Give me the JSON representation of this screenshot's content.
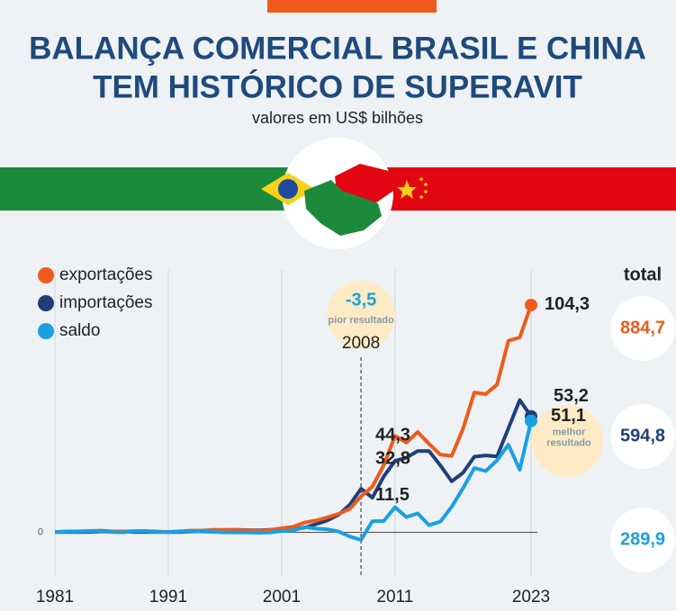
{
  "header": {
    "title": [
      "BALANÇA COMERCIAL BRASIL E CHINA",
      "TEM HISTÓRICO DE SUPERAVIT"
    ],
    "subtitle": "valores em US$ bilhões"
  },
  "chart_data": {
    "type": "line",
    "x": [
      1981,
      1982,
      1983,
      1984,
      1985,
      1986,
      1987,
      1988,
      1989,
      1990,
      1991,
      1992,
      1993,
      1994,
      1995,
      1996,
      1997,
      1998,
      1999,
      2000,
      2001,
      2002,
      2003,
      2004,
      2005,
      2006,
      2007,
      2008,
      2009,
      2010,
      2011,
      2012,
      2013,
      2014,
      2015,
      2016,
      2017,
      2018,
      2019,
      2020,
      2021,
      2022,
      2023
    ],
    "series": [
      {
        "name": "exportações",
        "color": "#f05a1a",
        "total": {
          "value": 884.7,
          "label": "884,7"
        },
        "values": [
          0.2,
          0.4,
          0.5,
          0.6,
          0.8,
          0.5,
          0.3,
          0.6,
          0.6,
          0.4,
          0.2,
          0.5,
          0.8,
          0.8,
          1.2,
          1.1,
          1.1,
          0.9,
          0.7,
          1.1,
          1.9,
          2.5,
          4.5,
          5.4,
          6.8,
          8.4,
          10.7,
          16.5,
          21.0,
          30.8,
          44.3,
          41.2,
          46.0,
          40.6,
          35.6,
          35.1,
          47.5,
          64.2,
          63.4,
          67.8,
          87.9,
          89.4,
          104.3
        ]
      },
      {
        "name": "importações",
        "color": "#1f3f7a",
        "total": {
          "value": 594.8,
          "label": "594,8"
        },
        "values": [
          0.1,
          0.1,
          0.1,
          0.1,
          0.3,
          0.4,
          0.3,
          0.1,
          0.1,
          0.2,
          0.1,
          0.1,
          0.3,
          0.5,
          1.0,
          1.1,
          1.2,
          1.0,
          0.9,
          1.2,
          1.3,
          1.6,
          2.1,
          3.7,
          5.4,
          8.0,
          12.6,
          20.0,
          15.9,
          25.6,
          32.8,
          34.2,
          37.3,
          37.3,
          30.7,
          23.4,
          27.3,
          34.7,
          35.3,
          34.8,
          47.7,
          60.7,
          53.2
        ]
      },
      {
        "name": "saldo",
        "color": "#1aa0e0",
        "total": {
          "value": 289.9,
          "label": "289,9"
        },
        "values": [
          0.1,
          0.3,
          0.4,
          0.5,
          0.5,
          0.1,
          0.0,
          0.5,
          0.5,
          0.2,
          0.1,
          0.4,
          0.5,
          0.3,
          0.2,
          0.0,
          -0.1,
          -0.1,
          -0.2,
          -0.1,
          0.6,
          0.9,
          2.4,
          1.7,
          1.4,
          0.4,
          -1.9,
          -3.5,
          5.1,
          5.2,
          11.5,
          7.0,
          8.7,
          3.3,
          4.9,
          11.7,
          20.2,
          29.5,
          28.1,
          33.0,
          40.2,
          28.7,
          51.1
        ]
      }
    ],
    "xlim": [
      1981,
      2023
    ],
    "xticks": [
      1981,
      1991,
      2001,
      2011,
      2023
    ],
    "ylim": [
      -20,
      108
    ],
    "yticks": [
      0
    ],
    "total_title": "total",
    "annotations": [
      {
        "x": 2008,
        "value": -3.5,
        "label": "-3,5",
        "note": [
          "pior resultado"
        ]
      },
      {
        "value": 104.3,
        "label": "104,3"
      },
      {
        "value": 53.2,
        "label": "53,2"
      },
      {
        "value": 51.1,
        "label": "51,1",
        "note": [
          "melhor",
          "resultado"
        ]
      },
      {
        "value": 44.3,
        "label": "44,3"
      },
      {
        "value": 32.8,
        "label": "32,8"
      },
      {
        "value": 11.5,
        "label": "11,5"
      }
    ]
  }
}
